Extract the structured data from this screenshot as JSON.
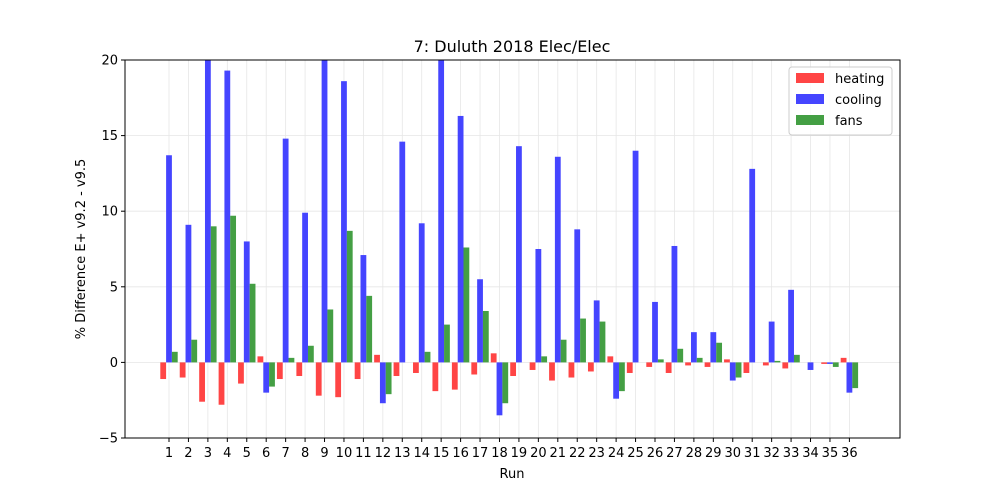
{
  "chart_data": {
    "type": "bar",
    "title": "7: Duluth 2018 Elec/Elec",
    "xlabel": "Run",
    "ylabel": "% Difference E+ v9.2 - v9.5",
    "ylim": [
      -5,
      20
    ],
    "yticks": [
      -5,
      0,
      5,
      10,
      15,
      20
    ],
    "grid": true,
    "legend_position": "top-right",
    "categories": [
      "1",
      "2",
      "3",
      "4",
      "5",
      "6",
      "7",
      "8",
      "9",
      "10",
      "11",
      "12",
      "13",
      "14",
      "15",
      "16",
      "17",
      "18",
      "19",
      "20",
      "21",
      "22",
      "23",
      "24",
      "25",
      "26",
      "27",
      "28",
      "29",
      "30",
      "31",
      "32",
      "33",
      "34",
      "35",
      "36"
    ],
    "series": [
      {
        "name": "heating",
        "color": "#ff3b3b",
        "values": [
          -1.1,
          -1.0,
          -2.6,
          -2.8,
          -1.4,
          0.4,
          -1.1,
          -0.9,
          -2.2,
          -2.3,
          -1.1,
          0.5,
          -0.9,
          -0.7,
          -1.9,
          -1.8,
          -0.8,
          0.6,
          -0.9,
          -0.5,
          -1.2,
          -1.0,
          -0.6,
          0.4,
          -0.7,
          -0.3,
          -0.7,
          -0.2,
          -0.3,
          0.2,
          -0.7,
          -0.2,
          -0.4,
          0.0,
          -0.1,
          0.3
        ]
      },
      {
        "name": "cooling",
        "color": "#3b3bff",
        "values": [
          13.7,
          9.1,
          20.0,
          19.3,
          8.0,
          -2.0,
          14.8,
          9.9,
          20.0,
          18.6,
          7.1,
          -2.7,
          14.6,
          9.2,
          20.0,
          16.3,
          5.5,
          -3.5,
          14.3,
          7.5,
          13.6,
          8.8,
          4.1,
          -2.4,
          14.0,
          4.0,
          7.7,
          2.0,
          2.0,
          -1.2,
          12.8,
          2.7,
          4.8,
          -0.5,
          -0.1,
          -2.0
        ]
      },
      {
        "name": "fans",
        "color": "#3a9a3a",
        "values": [
          0.7,
          1.5,
          9.0,
          9.7,
          5.2,
          -1.6,
          0.3,
          1.1,
          3.5,
          8.7,
          4.4,
          -2.1,
          0.0,
          0.7,
          2.5,
          7.6,
          3.4,
          -2.7,
          0.0,
          0.4,
          1.5,
          2.9,
          2.7,
          -1.9,
          0.0,
          0.2,
          0.9,
          0.3,
          1.3,
          -1.0,
          0.0,
          0.1,
          0.5,
          0.0,
          -0.3,
          -1.7
        ]
      }
    ]
  }
}
